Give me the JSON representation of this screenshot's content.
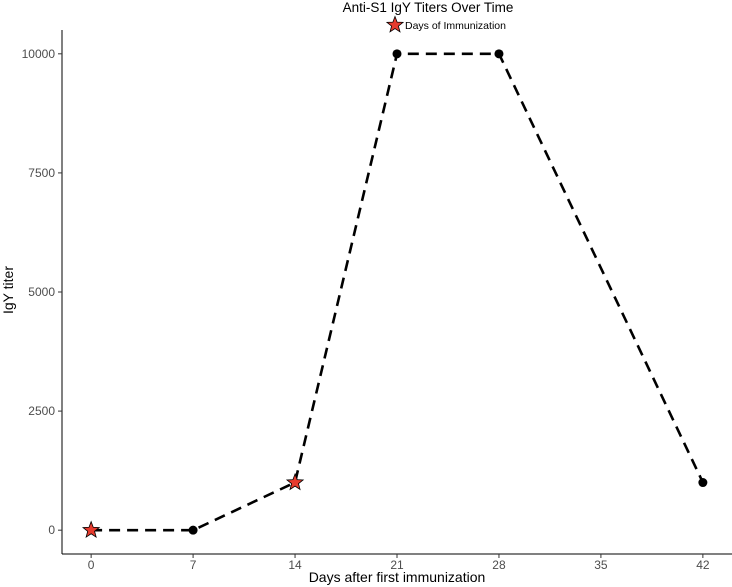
{
  "chart_data": {
    "type": "line",
    "title": "Anti-S1 IgY Titers Over Time",
    "xlabel": "Days after first immunization",
    "ylabel": "IgY titer",
    "x_ticks": [
      0,
      7,
      14,
      21,
      28,
      35,
      42
    ],
    "y_ticks": [
      0,
      2500,
      5000,
      7500,
      10000
    ],
    "x_tick_labels": [
      "0",
      "7",
      "14",
      "21",
      "28",
      "35",
      "42"
    ],
    "y_tick_labels": [
      "0",
      "2500",
      "5000",
      "7500",
      "10000"
    ],
    "xlim": [
      -2,
      44
    ],
    "ylim": [
      -500,
      10500
    ],
    "grid": false,
    "legend_position": "top-center",
    "series": [
      {
        "line_style": "dashed",
        "color": "#000000",
        "points": [
          {
            "x": 0,
            "y": 0,
            "marker": "star"
          },
          {
            "x": 7,
            "y": 0,
            "marker": "circle"
          },
          {
            "x": 14,
            "y": 1000,
            "marker": "star"
          },
          {
            "x": 21,
            "y": 10000,
            "marker": "circle"
          },
          {
            "x": 28,
            "y": 10000,
            "marker": "circle"
          },
          {
            "x": 42,
            "y": 1000,
            "marker": "circle"
          }
        ]
      }
    ],
    "legend": [
      {
        "label": "Days of Immunization",
        "marker": "star",
        "color": "#e63b2e"
      }
    ]
  }
}
